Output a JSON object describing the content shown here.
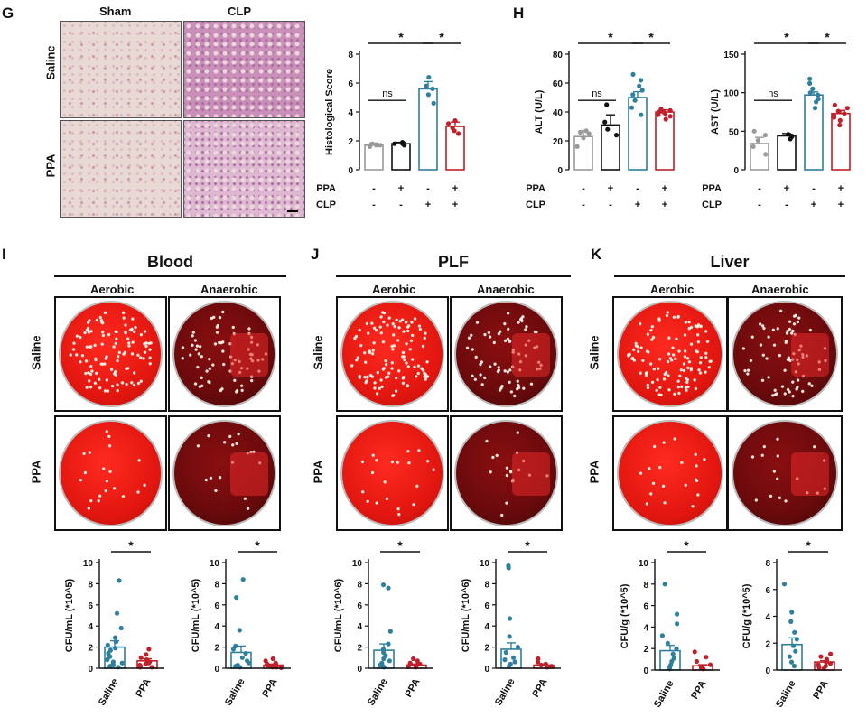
{
  "panels": {
    "G": "G",
    "H": "H",
    "I": "I",
    "J": "J",
    "K": "K"
  },
  "micro": {
    "sham": "Sham",
    "clp": "CLP",
    "saline": "Saline",
    "ppa": "PPA",
    "scale_bar": "scale-bar"
  },
  "sig": {
    "star": "*",
    "ns": "ns"
  },
  "conditions": {
    "ppa_label": "PPA",
    "clp_label": "CLP",
    "ppa": [
      "-",
      "+",
      "-",
      "+"
    ],
    "clp": [
      "-",
      "-",
      "+",
      "+"
    ]
  },
  "colors": {
    "grey": "#9a9a9a",
    "black": "#111111",
    "blue": "#2f7f9e",
    "red": "#c0202a",
    "plate_aerobic": "#e0160f",
    "plate_anaerobic": "#6a0a0c"
  },
  "sections": [
    {
      "key": "I",
      "title": "Blood",
      "aerobic": "Aerobic",
      "anaerobic": "Anaerobic",
      "rows": [
        "Saline",
        "PPA"
      ]
    },
    {
      "key": "J",
      "title": "PLF",
      "aerobic": "Aerobic",
      "anaerobic": "Anaerobic",
      "rows": [
        "Saline",
        "PPA"
      ]
    },
    {
      "key": "K",
      "title": "Liver",
      "aerobic": "Aerobic",
      "anaerobic": "Anaerobic",
      "rows": [
        "Saline",
        "PPA"
      ]
    }
  ],
  "chart_data": [
    {
      "id": "histological-score",
      "type": "bar",
      "ylabel": "Histological Score",
      "ylim": [
        0,
        8
      ],
      "yticks": [
        0,
        2,
        4,
        6,
        8
      ],
      "groups": [
        "Sham+Saline",
        "Sham+PPA",
        "CLP+Saline",
        "CLP+PPA"
      ],
      "values": [
        1.7,
        1.8,
        5.6,
        3.0
      ],
      "errors": [
        0.15,
        0.1,
        0.5,
        0.3
      ],
      "points": [
        [
          1.6,
          1.7,
          1.8,
          1.7
        ],
        [
          1.8,
          1.7,
          1.9,
          1.8
        ],
        [
          4.6,
          5.2,
          5.6,
          6.4,
          5.8
        ],
        [
          2.5,
          2.9,
          3.2,
          3.4,
          2.7
        ]
      ],
      "annotations": [
        "ns",
        "*",
        "*"
      ]
    },
    {
      "id": "alt",
      "type": "bar",
      "ylabel": "ALT (U/L)",
      "ylim": [
        0,
        80
      ],
      "yticks": [
        0,
        20,
        40,
        60,
        80
      ],
      "groups": [
        "Sham+Saline",
        "Sham+PPA",
        "CLP+Saline",
        "CLP+PPA"
      ],
      "values": [
        23,
        31,
        50,
        40
      ],
      "errors": [
        4,
        7,
        4,
        1.5
      ],
      "points": [
        [
          16,
          22,
          25,
          26,
          27
        ],
        [
          24,
          28,
          33,
          45
        ],
        [
          38,
          43,
          48,
          52,
          55,
          62,
          66,
          58
        ],
        [
          35,
          37,
          39,
          40,
          41,
          42,
          38,
          40
        ]
      ],
      "annotations": [
        "ns",
        "*",
        "*"
      ]
    },
    {
      "id": "ast",
      "type": "bar",
      "ylabel": "AST (U/L)",
      "ylim": [
        0,
        150
      ],
      "yticks": [
        0,
        50,
        100,
        150
      ],
      "groups": [
        "Sham+Saline",
        "Sham+PPA",
        "CLP+Saline",
        "CLP+PPA"
      ],
      "values": [
        34,
        44,
        97,
        73
      ],
      "errors": [
        8,
        3,
        4,
        4
      ],
      "points": [
        [
          20,
          30,
          38,
          45,
          50
        ],
        [
          40,
          43,
          46,
          44
        ],
        [
          80,
          88,
          92,
          97,
          100,
          105,
          112,
          118
        ],
        [
          58,
          64,
          70,
          73,
          76,
          80,
          84,
          68
        ]
      ],
      "annotations": [
        "ns",
        "*",
        "*"
      ]
    },
    {
      "id": "blood-aerobic",
      "type": "bar",
      "ylabel": "CFU/mL (*10^5)",
      "ylim": [
        0,
        10
      ],
      "yticks": [
        0,
        2,
        4,
        6,
        8,
        10
      ],
      "categories": [
        "Saline",
        "PPA"
      ],
      "values": [
        2.0,
        0.7
      ],
      "errors": [
        0.6,
        0.2
      ],
      "points": [
        [
          8.3,
          5.2,
          3.8,
          2.9,
          2.5,
          2.2,
          1.9,
          1.7,
          1.4,
          1.1,
          0.8,
          0.6,
          0.5,
          0.4,
          0.3,
          0.2,
          0.1
        ],
        [
          1.8,
          1.3,
          1.0,
          0.8,
          0.6,
          0.5,
          0.4,
          0.3,
          0.2,
          0.1,
          0.1
        ]
      ],
      "annotations": [
        "*"
      ]
    },
    {
      "id": "blood-anaerobic",
      "type": "bar",
      "ylabel": "CFU/mL (*10^5)",
      "ylim": [
        0,
        10
      ],
      "yticks": [
        0,
        2,
        4,
        6,
        8,
        10
      ],
      "categories": [
        "Saline",
        "PPA"
      ],
      "values": [
        1.5,
        0.3
      ],
      "errors": [
        0.6,
        0.1
      ],
      "points": [
        [
          8.4,
          6.7,
          3.6,
          2.1,
          1.8,
          1.4,
          1.0,
          0.7,
          0.5,
          0.3,
          0.2,
          0.1
        ],
        [
          0.9,
          0.7,
          0.5,
          0.4,
          0.3,
          0.2,
          0.1,
          0.1,
          0.05
        ]
      ],
      "annotations": [
        "*"
      ]
    },
    {
      "id": "plf-aerobic",
      "type": "bar",
      "ylabel": "CFU/mL (*10^6)",
      "ylim": [
        0,
        10
      ],
      "yticks": [
        0,
        2,
        4,
        6,
        8,
        10
      ],
      "categories": [
        "Saline",
        "PPA"
      ],
      "values": [
        1.7,
        0.3
      ],
      "errors": [
        0.6,
        0.1
      ],
      "points": [
        [
          7.9,
          7.6,
          3.5,
          2.3,
          1.8,
          1.5,
          1.2,
          0.9,
          0.7,
          0.5,
          0.3,
          0.2,
          0.1
        ],
        [
          0.9,
          0.7,
          0.5,
          0.4,
          0.3,
          0.2,
          0.1
        ]
      ],
      "annotations": [
        "*"
      ]
    },
    {
      "id": "plf-anaerobic",
      "type": "bar",
      "ylabel": "CFU/mL (*10^6)",
      "ylim": [
        0,
        10
      ],
      "yticks": [
        0,
        2,
        4,
        6,
        8,
        10
      ],
      "categories": [
        "Saline",
        "PPA"
      ],
      "values": [
        1.8,
        0.3
      ],
      "errors": [
        0.6,
        0.1
      ],
      "points": [
        [
          9.7,
          9.5,
          4.7,
          3.0,
          2.0,
          1.5,
          1.0,
          0.8,
          0.6,
          0.4,
          0.2
        ],
        [
          0.9,
          0.6,
          0.4,
          0.3,
          0.2,
          0.1
        ]
      ],
      "annotations": [
        "*"
      ]
    },
    {
      "id": "liver-aerobic",
      "type": "bar",
      "ylabel": "CFU/g (*10^5)",
      "ylim": [
        0,
        10
      ],
      "yticks": [
        0,
        2,
        4,
        6,
        8,
        10
      ],
      "categories": [
        "Saline",
        "PPA"
      ],
      "values": [
        1.8,
        0.4
      ],
      "errors": [
        0.5,
        0.1
      ],
      "points": [
        [
          8.0,
          5.2,
          4.3,
          3.2,
          2.5,
          2.0,
          1.5,
          1.1,
          0.8,
          0.5,
          0.3,
          0.1
        ],
        [
          1.7,
          1.2,
          0.8,
          0.5,
          0.3,
          0.2,
          0.1
        ]
      ],
      "annotations": [
        "*"
      ]
    },
    {
      "id": "liver-anaerobic",
      "type": "bar",
      "ylabel": "CFU/g (*10^5)",
      "ylim": [
        0,
        8
      ],
      "yticks": [
        0,
        2,
        4,
        6,
        8
      ],
      "categories": [
        "Saline",
        "PPA"
      ],
      "values": [
        1.9,
        0.6
      ],
      "errors": [
        0.5,
        0.1
      ],
      "points": [
        [
          6.4,
          4.3,
          3.6,
          2.8,
          2.3,
          1.8,
          1.4,
          1.0,
          0.6,
          0.3
        ],
        [
          1.2,
          1.0,
          0.8,
          0.6,
          0.5,
          0.4,
          0.3,
          0.2,
          0.1
        ]
      ],
      "annotations": [
        "*"
      ]
    }
  ]
}
